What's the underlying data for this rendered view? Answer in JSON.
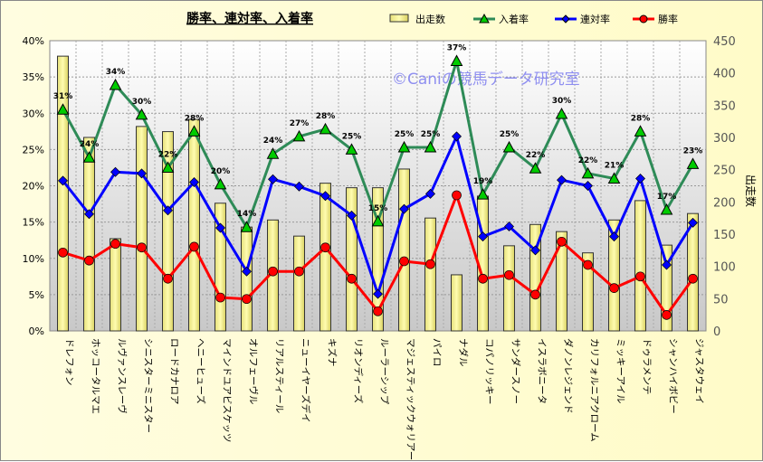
{
  "chart_data": {
    "type": "bar+line",
    "title": "勝率、連対率、入着率",
    "watermark": "©Caniの競馬データ研究室",
    "ylabel_right": "出走数",
    "ylim_left": [
      0,
      40
    ],
    "ylim_right": [
      0,
      450
    ],
    "left_ticks": [
      "0%",
      "5%",
      "10%",
      "15%",
      "20%",
      "25%",
      "30%",
      "35%",
      "40%"
    ],
    "right_ticks": [
      "0",
      "50",
      "100",
      "150",
      "200",
      "250",
      "300",
      "350",
      "400",
      "450"
    ],
    "legend_position": "top-right",
    "categories": [
      "ドレフォン",
      "ホッコータルマエ",
      "ルヴァンスレーヴ",
      "シニスターミニスター",
      "ロードカナロア",
      "ヘニーヒューズ",
      "マインドユアビスケッツ",
      "オルフェーヴル",
      "リアルスティール",
      "ニューイヤーズデイ",
      "キズナ",
      "リオンディーズ",
      "ルーラーシップ",
      "マジェスティックウォリアー",
      "パイロ",
      "ナダル",
      "コパノリッキー",
      "サンダースノー",
      "イスラボニータ",
      "ダノンレジェンド",
      "カリフォルニアクローム",
      "ミッキーアイル",
      "ドゥラメンテ",
      "シャンハイボビー",
      "ジャスタウェイ"
    ],
    "series": [
      {
        "name": "出走数",
        "type": "bar",
        "axis": "right",
        "color": "#f5f08a",
        "values": [
          426,
          300,
          143,
          317,
          309,
          328,
          198,
          161,
          172,
          147,
          229,
          222,
          222,
          251,
          175,
          87,
          209,
          132,
          165,
          154,
          121,
          172,
          202,
          133,
          182
        ]
      },
      {
        "name": "入着率",
        "type": "line",
        "axis": "left",
        "color": "#2e8b57",
        "marker": "triangle",
        "marker_color": "#00cc00",
        "values": [
          30.5,
          23.9,
          33.9,
          29.8,
          22.5,
          27.5,
          20.2,
          14.3,
          24.4,
          26.8,
          27.8,
          25.0,
          15.1,
          25.3,
          25.3,
          37.2,
          18.8,
          25.3,
          22.4,
          29.9,
          21.7,
          21.0,
          27.5,
          16.7,
          23.0
        ],
        "labels": [
          "31%",
          "24%",
          "34%",
          "30%",
          "22%",
          "28%",
          "20%",
          "14%",
          "24%",
          "27%",
          "28%",
          "25%",
          "15%",
          "25%",
          "25%",
          "37%",
          "19%",
          "25%",
          "22%",
          "30%",
          "22%",
          "21%",
          "28%",
          "17%",
          "23%"
        ]
      },
      {
        "name": "連対率",
        "type": "line",
        "axis": "left",
        "color": "#0000ff",
        "marker": "diamond",
        "values": [
          20.7,
          16.1,
          21.9,
          21.7,
          16.6,
          20.5,
          14.2,
          8.2,
          20.9,
          19.9,
          18.6,
          15.9,
          5.1,
          16.8,
          18.9,
          26.8,
          13.0,
          14.4,
          11.1,
          20.8,
          20.0,
          13.0,
          21.0,
          9.1,
          14.9
        ]
      },
      {
        "name": "勝率",
        "type": "line",
        "axis": "left",
        "color": "#ff0000",
        "marker": "circle",
        "values": [
          10.8,
          9.7,
          12.0,
          11.5,
          7.2,
          11.6,
          4.6,
          4.4,
          8.2,
          8.2,
          11.5,
          7.2,
          2.7,
          9.6,
          9.2,
          18.7,
          7.2,
          7.7,
          5.0,
          12.3,
          9.1,
          5.9,
          7.5,
          2.2,
          7.2
        ]
      }
    ]
  }
}
